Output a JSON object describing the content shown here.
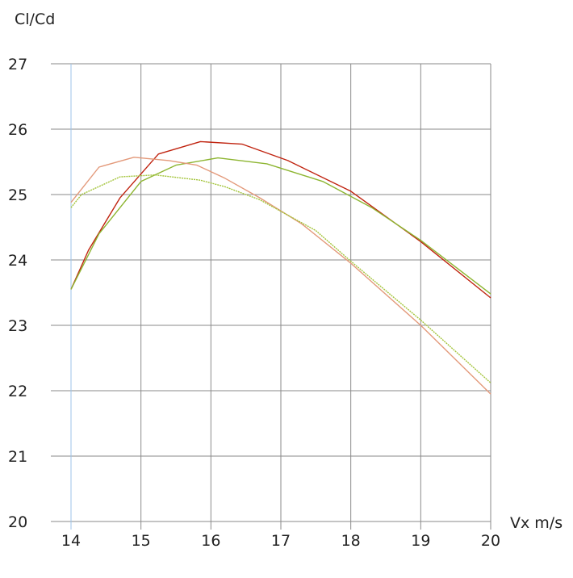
{
  "chart_data": {
    "type": "line",
    "ylabel": "Cl/Cd",
    "xlabel": "Vx m/s",
    "xlim": [
      14,
      20
    ],
    "ylim": [
      20,
      27
    ],
    "x_ticks": [
      "14",
      "15",
      "16",
      "17",
      "18",
      "19",
      "20"
    ],
    "y_ticks": [
      "20",
      "21",
      "22",
      "23",
      "24",
      "25",
      "26",
      "27"
    ],
    "grid": true,
    "series": [
      {
        "color": "#c0230f",
        "points": [
          [
            14,
            23.55
          ],
          [
            14.25,
            24.15
          ],
          [
            14.7,
            24.95
          ],
          [
            15.25,
            25.62
          ],
          [
            15.85,
            25.81
          ],
          [
            16.45,
            25.77
          ],
          [
            17.1,
            25.52
          ],
          [
            18,
            25.05
          ],
          [
            19,
            24.28
          ],
          [
            20,
            23.42
          ]
        ]
      },
      {
        "color": "#8db531",
        "points": [
          [
            14,
            23.55
          ],
          [
            14.4,
            24.4
          ],
          [
            15,
            25.2
          ],
          [
            15.5,
            25.45
          ],
          [
            16.1,
            25.56
          ],
          [
            16.8,
            25.47
          ],
          [
            17.6,
            25.2
          ],
          [
            18.3,
            24.8
          ],
          [
            19,
            24.3
          ],
          [
            20,
            23.48
          ]
        ]
      },
      {
        "color": "#e3997a",
        "points": [
          [
            14,
            24.88
          ],
          [
            14.4,
            25.42
          ],
          [
            14.9,
            25.57
          ],
          [
            15.4,
            25.52
          ],
          [
            15.8,
            25.45
          ],
          [
            16.2,
            25.25
          ],
          [
            16.7,
            24.95
          ],
          [
            17.3,
            24.55
          ],
          [
            18,
            23.95
          ],
          [
            19,
            23.0
          ],
          [
            20,
            21.95
          ]
        ]
      },
      {
        "color": "#a3c43a",
        "dashed": true,
        "points": [
          [
            14,
            24.8
          ],
          [
            14.15,
            25.0
          ],
          [
            14.7,
            25.27
          ],
          [
            15.2,
            25.3
          ],
          [
            15.85,
            25.22
          ],
          [
            16.2,
            25.12
          ],
          [
            16.7,
            24.92
          ],
          [
            17.5,
            24.45
          ],
          [
            18,
            23.98
          ],
          [
            19,
            23.08
          ],
          [
            20,
            22.12
          ]
        ]
      }
    ]
  }
}
